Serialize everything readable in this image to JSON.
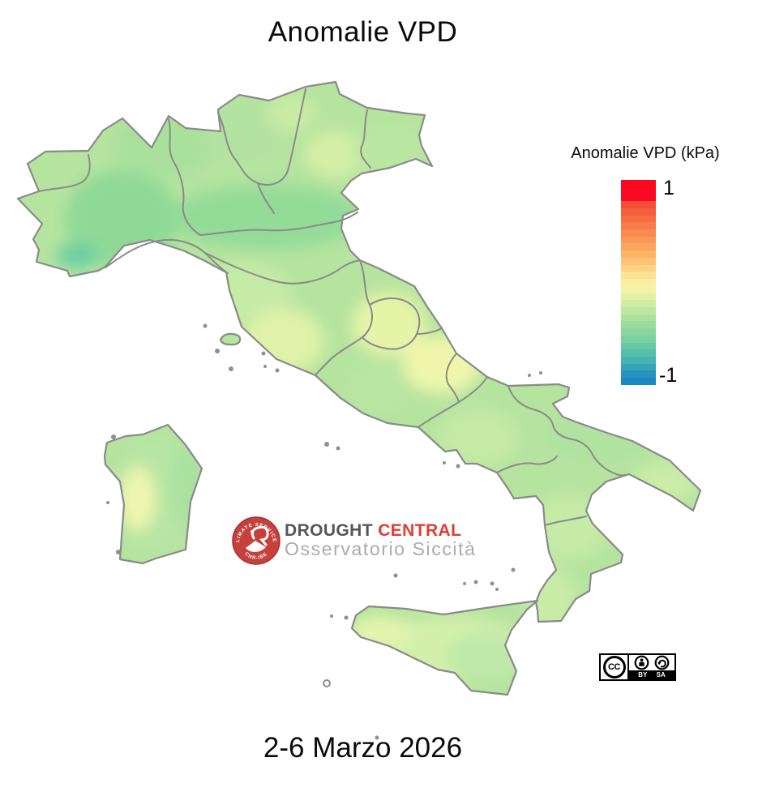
{
  "title": "Anomalie VPD",
  "date_caption": "2-6 Marzo 2026",
  "legend": {
    "title": "Anomalie VPD (kPa)",
    "max_label": "1",
    "min_label": "-1",
    "value_range": [
      -1,
      1
    ],
    "colorbar_stops": [
      "#FA0A22",
      "#FA0A22",
      "#FA0A22",
      "#F34E37",
      "#F55F3E",
      "#F66E45",
      "#F77C4B",
      "#F88A52",
      "#FA9858",
      "#FBA65F",
      "#FCB466",
      "#FDC273",
      "#FDD283",
      "#FBE295",
      "#F9EFA3",
      "#F2F3A7",
      "#E2F1A6",
      "#D0EDA5",
      "#BDE8A2",
      "#ABE29F",
      "#99DC9C",
      "#89D79D",
      "#79D0A0",
      "#68C8A5",
      "#57BEAA",
      "#46B2B1",
      "#35A4BA",
      "#2693C0",
      "#1F86C5"
    ]
  },
  "map": {
    "sea_color": "#ffffff",
    "border_color": "#8a8a8a",
    "base_fill": "#b5e49f"
  },
  "logo": {
    "brand_part1": "DROUGHT ",
    "brand_part2": "CENTRAL",
    "subtitle": "Osservatorio Siccità",
    "badge_arc_top": "CLIMATE SERVICES",
    "badge_arc_bottom": "CNR-IBE",
    "badge_color": "#c6403c"
  },
  "license_badge": {
    "cc_label": "CC",
    "by_label": "BY",
    "sa_label": "SA"
  }
}
